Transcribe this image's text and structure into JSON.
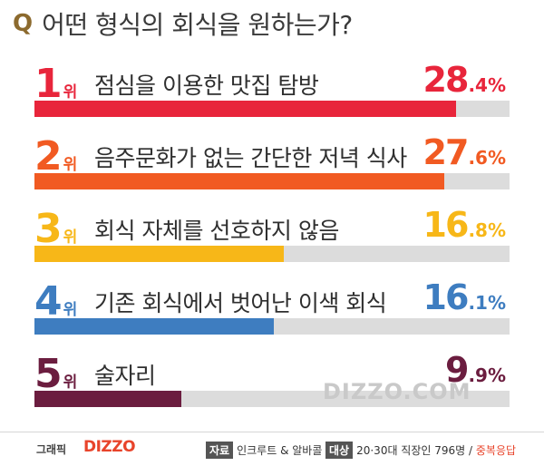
{
  "question": {
    "mark": "Q",
    "text": "어떤 형식의 회식을 원하는가?"
  },
  "chart_data": {
    "type": "bar",
    "orientation": "horizontal",
    "title": "어떤 형식의 회식을 원하는가?",
    "rank_suffix": "위",
    "xlim": [
      0,
      32
    ],
    "items": [
      {
        "rank": "1",
        "label": "점심을 이용한 맛집 탐방",
        "value": 28.4,
        "pct_int": "28",
        "pct_dec": ".4%",
        "color": "#e8253b"
      },
      {
        "rank": "2",
        "label": "음주문화가 없는 간단한 저녁 식사",
        "value": 27.6,
        "pct_int": "27",
        "pct_dec": ".6%",
        "color": "#f15a22"
      },
      {
        "rank": "3",
        "label": "회식 자체를 선호하지 않음",
        "value": 16.8,
        "pct_int": "16",
        "pct_dec": ".8%",
        "color": "#f7b718"
      },
      {
        "rank": "4",
        "label": "기존 회식에서 벗어난 이색 회식",
        "value": 16.1,
        "pct_int": "16",
        "pct_dec": ".1%",
        "color": "#3e7dc0"
      },
      {
        "rank": "5",
        "label": "술자리",
        "value": 9.9,
        "pct_int": "9",
        "pct_dec": ".9%",
        "color": "#6b1d3f"
      }
    ]
  },
  "watermark": "DIZZO.COM",
  "footer": {
    "graphic_label": "그래픽",
    "brand": "DIZZO",
    "source_tag": "자료",
    "source_text": "인크루트 & 알바콜",
    "target_tag": "대상",
    "target_text": "20·30대 직장인 796명 / ",
    "target_note": "중복응답"
  }
}
